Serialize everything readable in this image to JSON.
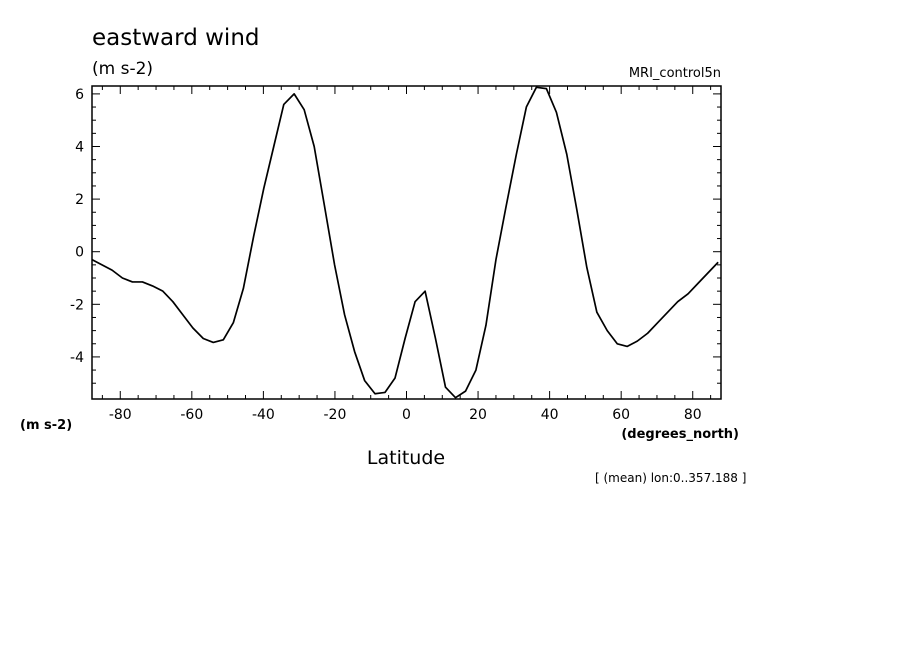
{
  "chart_data": {
    "type": "line",
    "title": "eastward wind",
    "subtitle_units": "(m s-2)",
    "model": "MRI_control5n",
    "ylabel_units": "(m s-2)",
    "xlabel": "Latitude",
    "xlabel_units": "(degrees_north)",
    "annotation": "[ (mean) lon:0..357.188 ]",
    "xlim": [
      -87.9,
      87.9
    ],
    "ylim": [
      -5.6,
      6.3
    ],
    "x_ticks": [
      -80,
      -60,
      -40,
      -20,
      0,
      20,
      40,
      60,
      80
    ],
    "x_tick_labels": [
      "-80",
      "-60",
      "-40",
      "-20",
      "0",
      "20",
      "40",
      "60",
      "80"
    ],
    "y_ticks": [
      -4,
      -2,
      0,
      2,
      4,
      6
    ],
    "y_tick_labels": [
      "-4",
      "-2",
      "0",
      "2",
      "4",
      "6"
    ],
    "line_color": "#000000",
    "series": [
      {
        "x": [
          -87.9,
          -85.1,
          -82.3,
          -79.4,
          -76.6,
          -73.8,
          -71.0,
          -68.1,
          -65.3,
          -62.5,
          -59.7,
          -56.8,
          -54.0,
          -51.2,
          -48.4,
          -45.6,
          -42.7,
          -39.9,
          -37.1,
          -34.3,
          -31.4,
          -28.6,
          -25.8,
          -23.0,
          -20.1,
          -17.3,
          -14.5,
          -11.7,
          -8.8,
          -6.0,
          -3.2,
          -0.4,
          2.4,
          5.2,
          8.1,
          10.9,
          13.7,
          16.5,
          19.4,
          22.2,
          25.0,
          27.8,
          30.7,
          33.5,
          36.3,
          39.1,
          41.9,
          44.8,
          47.6,
          50.4,
          53.2,
          56.1,
          58.9,
          61.7,
          64.5,
          67.4,
          70.2,
          73.0,
          75.8,
          78.7,
          81.5,
          84.3,
          87.1
        ],
        "y": [
          -0.3,
          -0.5,
          -0.7,
          -1.0,
          -1.15,
          -1.15,
          -1.3,
          -1.5,
          -1.9,
          -2.4,
          -2.9,
          -3.3,
          -3.45,
          -3.35,
          -2.7,
          -1.4,
          0.6,
          2.4,
          4.0,
          5.6,
          6.0,
          5.4,
          4.0,
          1.8,
          -0.5,
          -2.4,
          -3.8,
          -4.9,
          -5.4,
          -5.35,
          -4.8,
          -3.3,
          -1.9,
          -1.5,
          -3.3,
          -5.15,
          -5.55,
          -5.3,
          -4.5,
          -2.8,
          -0.3,
          1.7,
          3.7,
          5.5,
          6.25,
          6.2,
          5.3,
          3.7,
          1.6,
          -0.6,
          -2.3,
          -3.0,
          -3.5,
          -3.6,
          -3.4,
          -3.1,
          -2.7,
          -2.3,
          -1.9,
          -1.6,
          -1.2,
          -0.8,
          -0.4
        ]
      }
    ]
  }
}
